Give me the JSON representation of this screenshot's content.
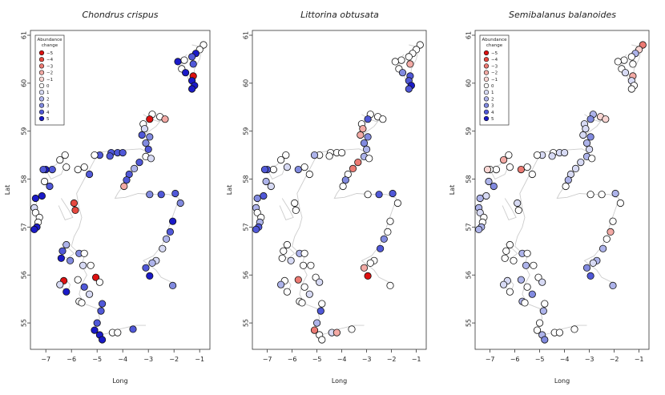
{
  "figure": {
    "x_label": "Long",
    "y_label": "Lat",
    "x_ticks": [
      "−7",
      "−6",
      "−5",
      "−4",
      "−3",
      "−2",
      "−1"
    ],
    "y_ticks": [
      "55",
      "56",
      "57",
      "58",
      "59",
      "60",
      "61"
    ]
  },
  "legend": {
    "title_line1": "Abundance",
    "title_line2": "change",
    "entries": [
      {
        "label": "−5",
        "color": "#dd1111"
      },
      {
        "label": "−4",
        "color": "#e5483f"
      },
      {
        "label": "−3",
        "color": "#ec7a73"
      },
      {
        "label": "−2",
        "color": "#f3aaa5"
      },
      {
        "label": "−1",
        "color": "#f9d6d3"
      },
      {
        "label": "0",
        "color": "#ffffff"
      },
      {
        "label": "1",
        "color": "#d7daf4"
      },
      {
        "label": "2",
        "color": "#adb3ea"
      },
      {
        "label": "3",
        "color": "#818adf"
      },
      {
        "label": "4",
        "color": "#5058d8"
      },
      {
        "label": "5",
        "color": "#1a1ac8"
      }
    ]
  },
  "panels": [
    {
      "title": "Chondrus crispus"
    },
    {
      "title": "Littorina obtusata"
    },
    {
      "title": "Semibalanus balanoides"
    }
  ],
  "chart_data": {
    "type": "scatter",
    "x_range": [
      -7.6,
      -0.6
    ],
    "y_range": [
      54.45,
      61.1
    ],
    "value_range": [
      -5,
      5
    ],
    "sites": [
      {
        "lon": -0.85,
        "lat": 60.8
      },
      {
        "lon": -1.0,
        "lat": 60.7
      },
      {
        "lon": -1.15,
        "lat": 60.62
      },
      {
        "lon": -1.3,
        "lat": 60.55
      },
      {
        "lon": -1.6,
        "lat": 60.48
      },
      {
        "lon": -1.85,
        "lat": 60.45
      },
      {
        "lon": -1.25,
        "lat": 60.4
      },
      {
        "lon": -1.7,
        "lat": 60.3
      },
      {
        "lon": -1.55,
        "lat": 60.22
      },
      {
        "lon": -1.25,
        "lat": 60.15
      },
      {
        "lon": -1.3,
        "lat": 60.05
      },
      {
        "lon": -1.2,
        "lat": 59.95
      },
      {
        "lon": -1.3,
        "lat": 59.88
      },
      {
        "lon": -2.85,
        "lat": 59.35
      },
      {
        "lon": -2.55,
        "lat": 59.3
      },
      {
        "lon": -2.95,
        "lat": 59.25
      },
      {
        "lon": -2.35,
        "lat": 59.25
      },
      {
        "lon": -3.2,
        "lat": 59.15
      },
      {
        "lon": -3.15,
        "lat": 59.05
      },
      {
        "lon": -3.25,
        "lat": 58.92
      },
      {
        "lon": -2.95,
        "lat": 58.88
      },
      {
        "lon": -3.1,
        "lat": 58.75
      },
      {
        "lon": -3.0,
        "lat": 58.62
      },
      {
        "lon": -3.1,
        "lat": 58.47
      },
      {
        "lon": -2.9,
        "lat": 58.43
      },
      {
        "lon": -4.45,
        "lat": 58.55
      },
      {
        "lon": -4.2,
        "lat": 58.55
      },
      {
        "lon": -4.0,
        "lat": 58.55
      },
      {
        "lon": -4.9,
        "lat": 58.5
      },
      {
        "lon": -5.1,
        "lat": 58.5
      },
      {
        "lon": -4.5,
        "lat": 58.48
      },
      {
        "lon": -3.35,
        "lat": 58.35
      },
      {
        "lon": -3.55,
        "lat": 58.22
      },
      {
        "lon": -3.75,
        "lat": 58.1
      },
      {
        "lon": -3.85,
        "lat": 57.98
      },
      {
        "lon": -3.95,
        "lat": 57.85
      },
      {
        "lon": -6.25,
        "lat": 58.5
      },
      {
        "lon": -6.45,
        "lat": 58.4
      },
      {
        "lon": -6.2,
        "lat": 58.25
      },
      {
        "lon": -6.75,
        "lat": 58.2
      },
      {
        "lon": -7.0,
        "lat": 58.2
      },
      {
        "lon": -7.1,
        "lat": 58.2
      },
      {
        "lon": -5.75,
        "lat": 58.2
      },
      {
        "lon": -5.5,
        "lat": 58.25
      },
      {
        "lon": -5.3,
        "lat": 58.1
      },
      {
        "lon": -7.05,
        "lat": 57.95
      },
      {
        "lon": -7.15,
        "lat": 57.65
      },
      {
        "lon": -6.85,
        "lat": 57.85
      },
      {
        "lon": -7.4,
        "lat": 57.6
      },
      {
        "lon": -7.45,
        "lat": 57.4
      },
      {
        "lon": -7.4,
        "lat": 57.3
      },
      {
        "lon": -7.25,
        "lat": 57.2
      },
      {
        "lon": -7.3,
        "lat": 57.1
      },
      {
        "lon": -7.35,
        "lat": 57.0
      },
      {
        "lon": -7.45,
        "lat": 56.95
      },
      {
        "lon": -5.9,
        "lat": 57.5
      },
      {
        "lon": -5.85,
        "lat": 57.35
      },
      {
        "lon": -2.95,
        "lat": 57.68
      },
      {
        "lon": -2.5,
        "lat": 57.68
      },
      {
        "lon": -1.95,
        "lat": 57.7
      },
      {
        "lon": -1.75,
        "lat": 57.5
      },
      {
        "lon": -2.05,
        "lat": 57.12
      },
      {
        "lon": -2.15,
        "lat": 56.9
      },
      {
        "lon": -2.3,
        "lat": 56.75
      },
      {
        "lon": -2.45,
        "lat": 56.55
      },
      {
        "lon": -2.7,
        "lat": 56.3
      },
      {
        "lon": -2.85,
        "lat": 56.25
      },
      {
        "lon": -3.1,
        "lat": 56.15
      },
      {
        "lon": -2.95,
        "lat": 55.98
      },
      {
        "lon": -2.05,
        "lat": 55.78
      },
      {
        "lon": -6.2,
        "lat": 56.63
      },
      {
        "lon": -6.35,
        "lat": 56.5
      },
      {
        "lon": -5.7,
        "lat": 56.45
      },
      {
        "lon": -5.5,
        "lat": 56.45
      },
      {
        "lon": -6.4,
        "lat": 56.35
      },
      {
        "lon": -6.05,
        "lat": 56.3
      },
      {
        "lon": -5.55,
        "lat": 56.2
      },
      {
        "lon": -5.25,
        "lat": 56.2
      },
      {
        "lon": -6.3,
        "lat": 55.88
      },
      {
        "lon": -6.45,
        "lat": 55.8
      },
      {
        "lon": -5.75,
        "lat": 55.9
      },
      {
        "lon": -5.5,
        "lat": 55.75
      },
      {
        "lon": -5.05,
        "lat": 55.95
      },
      {
        "lon": -4.9,
        "lat": 55.85
      },
      {
        "lon": -6.2,
        "lat": 55.65
      },
      {
        "lon": -5.3,
        "lat": 55.6
      },
      {
        "lon": -5.7,
        "lat": 55.45
      },
      {
        "lon": -5.6,
        "lat": 55.42
      },
      {
        "lon": -4.8,
        "lat": 55.4
      },
      {
        "lon": -4.85,
        "lat": 55.25
      },
      {
        "lon": -5.0,
        "lat": 55.0
      },
      {
        "lon": -5.1,
        "lat": 54.85
      },
      {
        "lon": -4.9,
        "lat": 54.75
      },
      {
        "lon": -4.8,
        "lat": 54.65
      },
      {
        "lon": -4.4,
        "lat": 54.8
      },
      {
        "lon": -4.2,
        "lat": 54.8
      },
      {
        "lon": -3.6,
        "lat": 54.87
      }
    ],
    "panel_values": [
      [
        0,
        0,
        5,
        4,
        0,
        5,
        4,
        0,
        5,
        -5,
        5,
        5,
        5,
        0,
        0,
        -5,
        -2,
        0,
        1,
        4,
        3,
        3,
        4,
        0,
        1,
        4,
        4,
        4,
        4,
        0,
        4,
        4,
        2,
        4,
        4,
        -2,
        0,
        0,
        0,
        4,
        5,
        4,
        0,
        0,
        4,
        0,
        5,
        4,
        5,
        1,
        0,
        0,
        0,
        5,
        5,
        -4,
        -4,
        3,
        4,
        4,
        3,
        5,
        4,
        2,
        1,
        1,
        2,
        4,
        5,
        3,
        2,
        4,
        3,
        0,
        5,
        3,
        1,
        0,
        -5,
        1,
        0,
        4,
        -5,
        0,
        5,
        1,
        0,
        0,
        4,
        4,
        4,
        5,
        5,
        5,
        0,
        0,
        4
      ],
      [
        0,
        0,
        0,
        0,
        0,
        0,
        -2,
        0,
        3,
        4,
        4,
        5,
        4,
        0,
        0,
        4,
        0,
        0,
        -2,
        -2,
        3,
        3,
        2,
        2,
        0,
        0,
        0,
        0,
        0,
        2,
        0,
        -3,
        -3,
        0,
        3,
        0,
        0,
        0,
        1,
        0,
        4,
        4,
        3,
        0,
        0,
        2,
        4,
        1,
        3,
        2,
        0,
        0,
        2,
        4,
        4,
        0,
        0,
        0,
        4,
        4,
        0,
        0,
        0,
        3,
        4,
        0,
        0,
        -2,
        -5,
        0,
        0,
        0,
        2,
        0,
        0,
        1,
        0,
        0,
        0,
        2,
        -3,
        0,
        0,
        1,
        0,
        1,
        0,
        0,
        0,
        4,
        2,
        -3,
        0,
        0,
        1,
        -2,
        0
      ],
      [
        -3,
        -1,
        2,
        0,
        0,
        0,
        0,
        0,
        1,
        -2,
        1,
        0,
        0,
        2,
        -1,
        3,
        -1,
        1,
        1,
        1,
        3,
        2,
        1,
        2,
        0,
        0,
        1,
        1,
        1,
        0,
        1,
        1,
        1,
        1,
        2,
        0,
        0,
        -2,
        0,
        0,
        0,
        -1,
        -3,
        0,
        0,
        2,
        1,
        3,
        2,
        2,
        1,
        0,
        0,
        2,
        2,
        1,
        0,
        0,
        0,
        2,
        0,
        0,
        -2,
        0,
        2,
        2,
        1,
        3,
        4,
        2,
        0,
        0,
        2,
        0,
        0,
        0,
        2,
        0,
        1,
        1,
        2,
        0,
        0,
        1,
        0,
        3,
        2,
        0,
        0,
        2,
        0,
        0,
        2,
        3,
        0,
        0,
        0
      ]
    ]
  }
}
